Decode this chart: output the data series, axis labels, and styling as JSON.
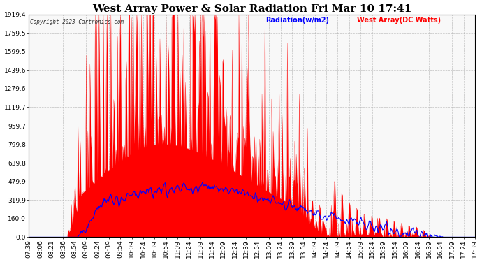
{
  "title": "West Array Power & Solar Radiation Fri Mar 10 17:41",
  "copyright": "Copyright 2023 Cartronics.com",
  "legend_radiation": "Radiation(w/m2)",
  "legend_west_array": "West Array(DC Watts)",
  "legend_radiation_color": "blue",
  "legend_west_array_color": "red",
  "y_tick_labels": [
    "0.0",
    "160.0",
    "319.9",
    "479.9",
    "639.8",
    "799.8",
    "959.7",
    "1119.7",
    "1279.6",
    "1439.6",
    "1599.5",
    "1759.5",
    "1919.4"
  ],
  "y_tick_values": [
    0.0,
    160.0,
    319.9,
    479.9,
    639.8,
    799.8,
    959.7,
    1119.7,
    1279.6,
    1439.6,
    1599.5,
    1759.5,
    1919.4
  ],
  "x_tick_labels": [
    "07:39",
    "08:06",
    "08:21",
    "08:36",
    "08:54",
    "09:09",
    "09:24",
    "09:39",
    "09:54",
    "10:09",
    "10:24",
    "10:39",
    "10:54",
    "11:09",
    "11:24",
    "11:39",
    "11:54",
    "12:09",
    "12:24",
    "12:39",
    "12:54",
    "13:09",
    "13:24",
    "13:39",
    "13:54",
    "14:09",
    "14:24",
    "14:39",
    "14:54",
    "15:09",
    "15:24",
    "15:39",
    "15:54",
    "16:09",
    "16:24",
    "16:39",
    "16:54",
    "17:09",
    "17:24",
    "17:39"
  ],
  "ymax": 1919.4,
  "ymin": 0.0,
  "background_color": "#ffffff",
  "plot_background_color": "#f8f8f8",
  "grid_color": "#aaaaaa",
  "title_fontsize": 11,
  "axis_fontsize": 6.5,
  "red_fill_color": "red",
  "blue_line_color": "blue",
  "figwidth": 6.9,
  "figheight": 3.75,
  "dpi": 100
}
